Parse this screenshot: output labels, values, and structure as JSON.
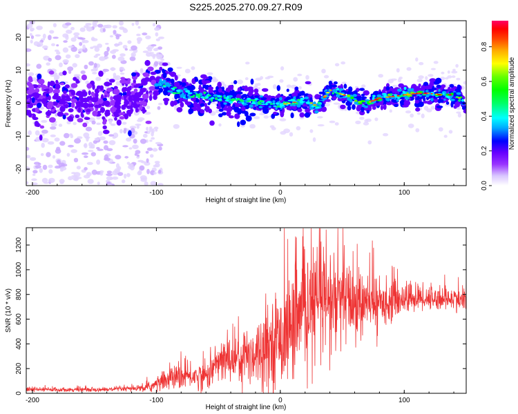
{
  "title": "S225.2025.270.09.27.R09",
  "chart_data": [
    {
      "type": "heatmap",
      "xlabel": "Height of straight line (km)",
      "ylabel": "Frequency (Hz)",
      "xlim": [
        -205,
        150
      ],
      "ylim": [
        -25,
        25
      ],
      "xticks": [
        -200,
        -100,
        0,
        100
      ],
      "yticks": [
        -20,
        -10,
        0,
        10,
        20
      ],
      "ridge": {
        "x": [
          -205,
          -180,
          -150,
          -120,
          -105,
          -95,
          -80,
          -60,
          -40,
          -20,
          0,
          15,
          25,
          30,
          40,
          55,
          70,
          80,
          90,
          100,
          110,
          120,
          130,
          140,
          147,
          150
        ],
        "freq_hz": [
          2,
          1,
          0,
          1,
          4,
          6,
          3,
          2,
          1,
          0.5,
          -0.5,
          0.5,
          0,
          -1,
          4,
          2,
          0,
          1.5,
          2,
          2.5,
          3,
          3,
          2.5,
          2.5,
          1,
          -3
        ]
      },
      "colorbar": {
        "label": "Normalized spectral amplitude",
        "range": [
          0,
          0.95
        ],
        "ticks": [
          "0.0",
          "0.2",
          "0.4",
          "0.6",
          "0.8"
        ],
        "colors": [
          "#ffffff",
          "#d9c6ff",
          "#9933ff",
          "#6600ff",
          "#0000ff",
          "#00aaff",
          "#00ffff",
          "#00ff66",
          "#00ff00",
          "#66ff00",
          "#ffff00",
          "#ffaa00",
          "#ff4400",
          "#ff0000",
          "#ff0066"
        ]
      }
    },
    {
      "type": "line",
      "xlabel": "Height of straight line (km)",
      "ylabel": "SNR (10 * v/v)",
      "xlim": [
        -205,
        150
      ],
      "ylim": [
        0,
        1340
      ],
      "xticks": [
        -200,
        -100,
        0,
        100
      ],
      "yticks": [
        0,
        200,
        400,
        600,
        800,
        1000,
        1200
      ],
      "color": "#ee3333",
      "envelope": {
        "x": [
          -205,
          -180,
          -140,
          -110,
          -100,
          -90,
          -80,
          -70,
          -60,
          -50,
          -40,
          -30,
          -20,
          -10,
          0,
          10,
          20,
          30,
          40,
          50,
          60,
          70,
          80,
          100,
          120,
          140,
          150
        ],
        "mean": [
          30,
          30,
          30,
          40,
          70,
          120,
          130,
          140,
          140,
          250,
          280,
          300,
          330,
          400,
          450,
          550,
          650,
          750,
          720,
          760,
          720,
          720,
          730,
          770,
          770,
          760,
          760
        ],
        "amplitude": [
          20,
          15,
          15,
          25,
          60,
          80,
          90,
          90,
          110,
          150,
          180,
          220,
          240,
          300,
          350,
          400,
          400,
          450,
          450,
          350,
          280,
          220,
          180,
          120,
          90,
          80,
          100
        ]
      }
    }
  ]
}
